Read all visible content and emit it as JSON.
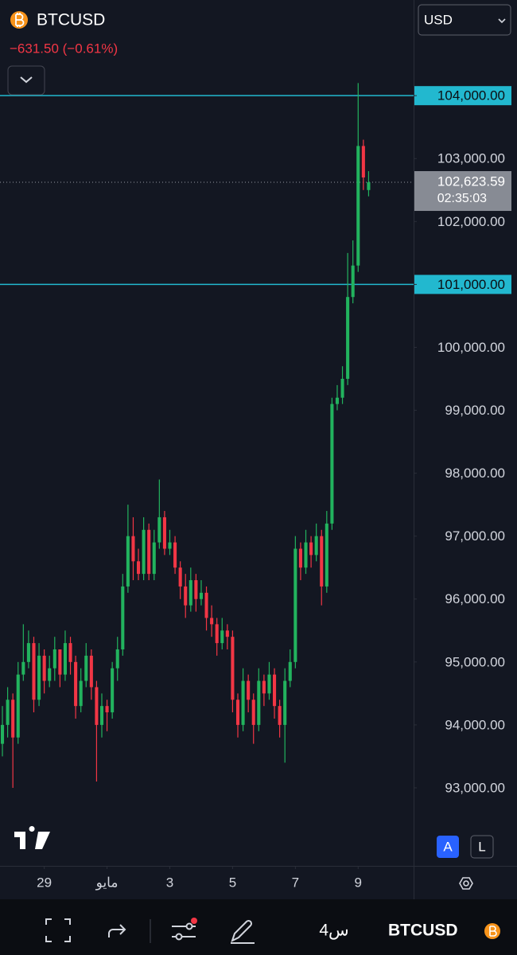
{
  "ui": {
    "symbol": "BTCUSD",
    "change": "−631.50 (−0.61%)",
    "currency": "USD",
    "auto_button": "A",
    "log_button": "L",
    "toolbar_symbol": "BTCUSD",
    "toolbar_interval": "4س"
  },
  "chart_data": {
    "type": "candlestick",
    "up_color": "#22b35e",
    "down_color": "#f23645",
    "x": [
      0,
      1,
      2,
      3,
      4,
      5,
      6,
      7,
      8,
      9,
      10,
      11,
      12,
      13,
      14,
      15,
      16,
      17,
      18,
      19,
      20,
      21,
      22,
      23,
      24,
      25,
      26,
      27,
      28,
      29,
      30,
      31,
      32,
      33,
      34,
      35,
      36,
      37,
      38,
      39,
      40,
      41,
      42,
      43,
      44,
      45,
      46,
      47,
      48,
      49,
      50,
      51,
      52,
      53,
      54,
      55,
      56,
      57,
      58,
      59,
      60,
      61,
      62,
      63,
      64,
      65,
      66,
      67,
      68,
      69,
      70
    ],
    "open": [
      93700,
      94000,
      94400,
      93800,
      94800,
      95000,
      95300,
      94400,
      95100,
      94700,
      94900,
      95200,
      94800,
      95300,
      95000,
      94300,
      94700,
      95100,
      94600,
      94000,
      94300,
      94200,
      94900,
      95200,
      96200,
      97000,
      96600,
      96400,
      97100,
      96400,
      96900,
      97300,
      96800,
      96900,
      96500,
      96200,
      95900,
      96300,
      96000,
      96100,
      95700,
      95600,
      95300,
      95500,
      95400,
      94400,
      94000,
      94700,
      94400,
      94000,
      94700,
      94500,
      94800,
      94300,
      94000,
      94700,
      95000,
      96800,
      96500,
      96900,
      96700,
      97000,
      96200,
      97200,
      99100,
      99200,
      99500,
      100800,
      101300,
      103200,
      102500
    ],
    "high": [
      94300,
      94600,
      94500,
      95000,
      95600,
      95500,
      95400,
      95300,
      95200,
      95100,
      95400,
      95200,
      95500,
      95400,
      95100,
      94900,
      95300,
      95200,
      94700,
      94500,
      94400,
      95000,
      95400,
      96400,
      97500,
      97300,
      96800,
      97300,
      97200,
      97100,
      97900,
      97400,
      97100,
      97000,
      96600,
      96400,
      96500,
      96400,
      96300,
      96200,
      95900,
      95700,
      95700,
      95600,
      95500,
      94500,
      94900,
      94800,
      94500,
      94900,
      94800,
      95000,
      94900,
      94400,
      94900,
      95200,
      97000,
      96900,
      97100,
      97000,
      97200,
      97100,
      97400,
      99200,
      99400,
      99700,
      101500,
      101700,
      104200,
      103300,
      102800
    ],
    "low": [
      93500,
      93800,
      93000,
      93700,
      94700,
      94900,
      94200,
      94300,
      94500,
      94600,
      94700,
      94600,
      94700,
      94800,
      94100,
      94200,
      94600,
      94400,
      93100,
      93800,
      93900,
      94100,
      94700,
      95100,
      96100,
      96300,
      96300,
      96300,
      96300,
      96300,
      96800,
      96700,
      96700,
      96400,
      96000,
      95700,
      95800,
      95800,
      95900,
      95500,
      95400,
      95100,
      95200,
      95200,
      94200,
      93800,
      93900,
      94200,
      93700,
      93900,
      94300,
      94400,
      94100,
      93800,
      93400,
      94600,
      94900,
      96300,
      96400,
      96500,
      96600,
      95900,
      96100,
      97100,
      99000,
      99100,
      99400,
      100700,
      101200,
      102500,
      102400
    ],
    "close": [
      94000,
      94400,
      93800,
      94800,
      95000,
      95300,
      94400,
      95100,
      94700,
      94900,
      95200,
      94800,
      95300,
      95000,
      94300,
      94700,
      95100,
      94600,
      94000,
      94300,
      94200,
      94900,
      95200,
      96200,
      97000,
      96600,
      96400,
      97100,
      96400,
      96900,
      97300,
      96800,
      96900,
      96500,
      96200,
      95900,
      96300,
      96000,
      96100,
      95700,
      95600,
      95300,
      95500,
      95400,
      94400,
      94000,
      94700,
      94400,
      94000,
      94700,
      94500,
      94800,
      94300,
      94000,
      94700,
      95000,
      96800,
      96500,
      96900,
      96700,
      97000,
      96200,
      97200,
      99100,
      99200,
      99500,
      100800,
      101300,
      103200,
      102700,
      102623.59
    ],
    "xlim": [
      -0.46,
      78.6
    ],
    "xticks": [
      {
        "value": 8,
        "label": "29"
      },
      {
        "value": 20,
        "label": "مايو"
      },
      {
        "value": 32,
        "label": "3"
      },
      {
        "value": 44,
        "label": "5"
      },
      {
        "value": 56,
        "label": "7"
      },
      {
        "value": 68,
        "label": "9"
      }
    ],
    "ylim": [
      91760,
      105520
    ],
    "yticks": [
      {
        "value": 93000,
        "label": "93,000.00"
      },
      {
        "value": 94000,
        "label": "94,000.00"
      },
      {
        "value": 95000,
        "label": "95,000.00"
      },
      {
        "value": 96000,
        "label": "96,000.00"
      },
      {
        "value": 97000,
        "label": "97,000.00"
      },
      {
        "value": 98000,
        "label": "98,000.00"
      },
      {
        "value": 99000,
        "label": "99,000.00"
      },
      {
        "value": 100000,
        "label": "100,000.00"
      },
      {
        "value": 101000,
        "label": "101,000.00"
      },
      {
        "value": 102000,
        "label": "102,000.00"
      },
      {
        "value": 103000,
        "label": "103,000.00"
      },
      {
        "value": 104000,
        "label": "104,000.00"
      }
    ],
    "hlines": [
      104000,
      101000
    ],
    "hline_color": "#22b8cf",
    "last_price": {
      "value": 102623.59,
      "label": "102,623.59"
    },
    "countdown": "02:35:03",
    "grid": false
  }
}
